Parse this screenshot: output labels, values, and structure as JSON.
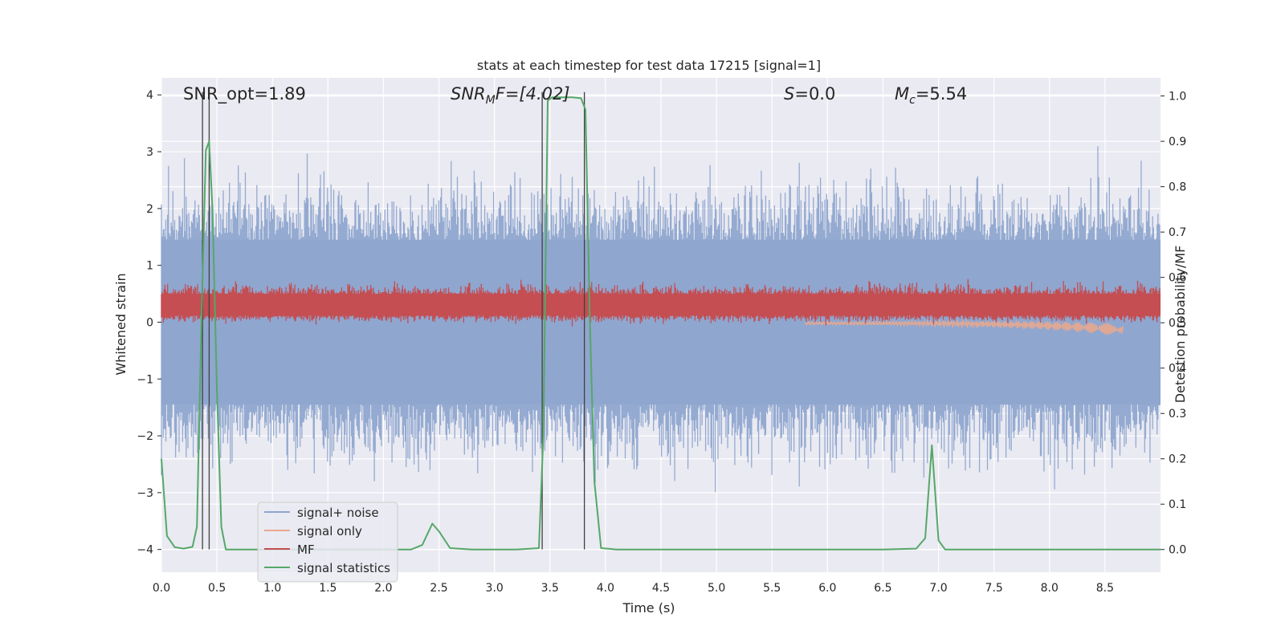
{
  "chart_data": {
    "type": "line",
    "title": "stats at each timestep for test data 17215 [signal=1]",
    "xlabel": "Time (s)",
    "ylabel_left": "Whitened strain",
    "ylabel_right": "Detection probability/MF",
    "xlim": [
      0,
      9.0
    ],
    "ylim_left": [
      -4.4,
      4.3
    ],
    "ylim_right": [
      -0.05,
      1.04
    ],
    "x_ticks": [
      "0.0",
      "0.5",
      "1.0",
      "1.5",
      "2.0",
      "2.5",
      "3.0",
      "3.5",
      "4.0",
      "4.5",
      "5.0",
      "5.5",
      "6.0",
      "6.5",
      "7.0",
      "7.5",
      "8.0",
      "8.5"
    ],
    "y_ticks_left": [
      "4",
      "3",
      "2",
      "1",
      "0",
      "−1",
      "−2",
      "−3",
      "−4"
    ],
    "y_ticks_right": [
      "1.0",
      "0.9",
      "0.8",
      "0.7",
      "0.6",
      "0.5",
      "0.4",
      "0.3",
      "0.2",
      "0.1",
      "0.0"
    ],
    "grid": true,
    "legend_position": "lower-left",
    "annotations": {
      "snr_opt": "SNR_opt=1.89",
      "snr_mf_main": "SNR",
      "snr_mf_sub": "M",
      "snr_mf_rest": "F=[4.02]",
      "s_italic": "S",
      "s_rest": "=0.0",
      "mc_italic": "M",
      "mc_sub": "c",
      "mc_rest": "=5.54"
    },
    "series": [
      {
        "name": "signal+ noise",
        "color": "#8fa6cf",
        "axis": "left",
        "style": "noise",
        "range": [
          -2.5,
          2.8
        ]
      },
      {
        "name": "signal only",
        "color": "#e9a98d",
        "axis": "left",
        "style": "chirp",
        "x": [
          5.8,
          8.66
        ],
        "y_end": -0.2
      },
      {
        "name": "MF",
        "color": "#c44e52",
        "axis": "left",
        "style": "band",
        "center": 0.3,
        "range": [
          0.0,
          0.7
        ]
      },
      {
        "name": "signal statistics",
        "color": "#55a868",
        "axis": "right",
        "style": "line",
        "x": [
          0.0,
          0.05,
          0.12,
          0.2,
          0.28,
          0.32,
          0.36,
          0.4,
          0.43,
          0.46,
          0.5,
          0.54,
          0.58,
          0.7,
          1.0,
          2.0,
          2.25,
          2.35,
          2.44,
          2.5,
          2.6,
          2.8,
          3.2,
          3.4,
          3.44,
          3.48,
          3.52,
          3.6,
          3.7,
          3.78,
          3.82,
          3.86,
          3.9,
          3.96,
          4.1,
          5.0,
          6.0,
          6.5,
          6.8,
          6.88,
          6.94,
          7.0,
          7.06,
          7.15,
          8.0,
          9.0
        ],
        "y": [
          0.2,
          0.03,
          0.005,
          0.002,
          0.006,
          0.05,
          0.5,
          0.88,
          0.9,
          0.75,
          0.35,
          0.05,
          0.0,
          0.0,
          0.0,
          0.0,
          0.0,
          0.01,
          0.057,
          0.04,
          0.003,
          0.0,
          0.0,
          0.003,
          0.25,
          0.99,
          0.997,
          0.997,
          0.997,
          0.995,
          0.97,
          0.5,
          0.15,
          0.003,
          0.0,
          0.0,
          0.0,
          0.0,
          0.002,
          0.025,
          0.23,
          0.02,
          0.0,
          0.0,
          0.0,
          0.0
        ]
      }
    ],
    "vertical_markers_x": [
      0.37,
      0.43,
      3.43,
      3.81
    ]
  }
}
